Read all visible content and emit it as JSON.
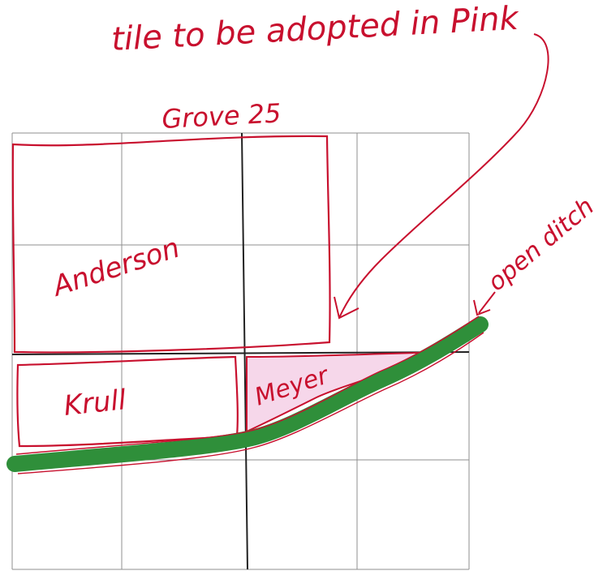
{
  "header": {
    "note": "tile to be adopted in Pink"
  },
  "map": {
    "title": "Grove 25",
    "ditch_label": "open ditch",
    "parcels": [
      {
        "owner": "Anderson"
      },
      {
        "owner": "Krull"
      },
      {
        "owner": "Meyer"
      }
    ]
  },
  "colors": {
    "ink": "#c8102e",
    "pink_fill": "#f6d7ea",
    "ditch": "#2f8f3a",
    "grid": "#8f8f8f",
    "grid_bold": "#222222"
  }
}
